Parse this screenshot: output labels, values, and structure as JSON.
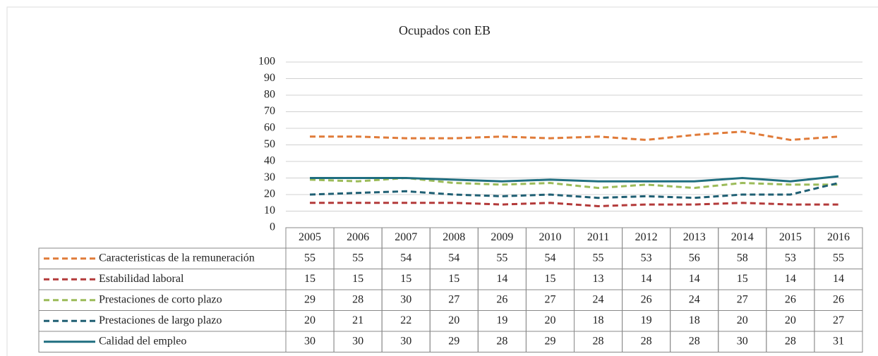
{
  "chart_data": {
    "type": "line",
    "title": "Ocupados con EB",
    "categories": [
      "2005",
      "2006",
      "2007",
      "2008",
      "2009",
      "2010",
      "2011",
      "2012",
      "2013",
      "2014",
      "2015",
      "2016"
    ],
    "ylim": [
      0,
      100
    ],
    "yticks": [
      0,
      10,
      20,
      30,
      40,
      50,
      60,
      70,
      80,
      90,
      100
    ],
    "grid": true,
    "series": [
      {
        "name": "Caracteristicas de la remuneración",
        "color": "#e07b39",
        "dashed": true,
        "values": [
          55,
          55,
          54,
          54,
          55,
          54,
          55,
          53,
          56,
          58,
          53,
          55
        ]
      },
      {
        "name": "Estabilidad laboral",
        "color": "#b33a3a",
        "dashed": true,
        "values": [
          15,
          15,
          15,
          15,
          14,
          15,
          13,
          14,
          14,
          15,
          14,
          14
        ]
      },
      {
        "name": "Prestaciones de corto plazo",
        "color": "#9bbb59",
        "dashed": true,
        "values": [
          29,
          28,
          30,
          27,
          26,
          27,
          24,
          26,
          24,
          27,
          26,
          26
        ]
      },
      {
        "name": "Prestaciones de largo plazo",
        "color": "#1f5f73",
        "dashed": true,
        "values": [
          20,
          21,
          22,
          20,
          19,
          20,
          18,
          19,
          18,
          20,
          20,
          27
        ]
      },
      {
        "name": "Calidad del empleo",
        "color": "#1f6e80",
        "dashed": false,
        "values": [
          30,
          30,
          30,
          29,
          28,
          29,
          28,
          28,
          28,
          30,
          28,
          31
        ]
      }
    ]
  }
}
